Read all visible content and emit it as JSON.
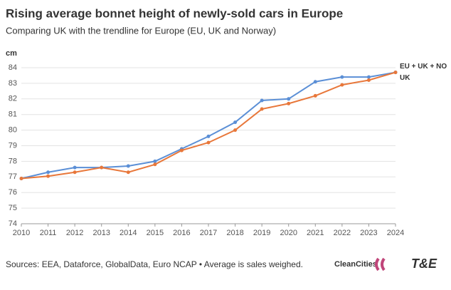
{
  "chart_data": {
    "type": "line",
    "title": "Rising average bonnet height of newly-sold cars in Europe",
    "subtitle": "Comparing UK with the trendline for Europe (EU, UK and Norway)",
    "y_label": "cm",
    "source": "Sources: EEA, Dataforce, GlobalData, Euro NCAP • Average is sales weighed.",
    "logos": [
      "CleanCities",
      "T&E"
    ],
    "x": [
      2010,
      2011,
      2012,
      2013,
      2014,
      2015,
      2016,
      2017,
      2018,
      2019,
      2020,
      2021,
      2022,
      2023,
      2024
    ],
    "series": [
      {
        "name": "EU + UK + NO",
        "color": "#5b8fd6",
        "values": [
          76.9,
          77.3,
          77.6,
          77.6,
          77.7,
          78.0,
          78.8,
          79.6,
          80.5,
          81.9,
          82.0,
          83.1,
          83.4,
          83.4,
          83.7
        ]
      },
      {
        "name": "UK",
        "color": "#e8773a",
        "values": [
          76.9,
          77.05,
          77.3,
          77.6,
          77.3,
          77.8,
          78.7,
          79.2,
          80.0,
          81.35,
          81.7,
          82.2,
          82.9,
          83.2,
          83.7
        ]
      }
    ],
    "xlim": [
      2010,
      2024
    ],
    "xticks": [
      2010,
      2011,
      2012,
      2013,
      2014,
      2015,
      2016,
      2017,
      2018,
      2019,
      2020,
      2021,
      2022,
      2023,
      2024
    ],
    "ylim": [
      74,
      84
    ],
    "yticks": [
      74,
      75,
      76,
      77,
      78,
      79,
      80,
      81,
      82,
      83,
      84
    ],
    "grid": true
  }
}
